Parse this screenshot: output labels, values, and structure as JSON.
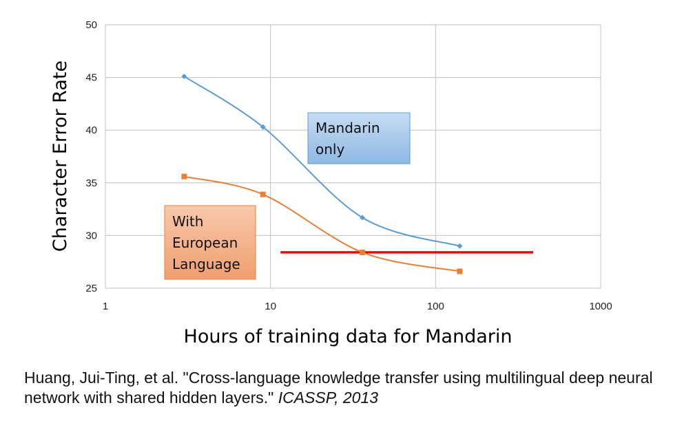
{
  "chart_data": {
    "type": "line",
    "title": "",
    "xlabel": "Hours of training data for Mandarin",
    "ylabel": "Character Error Rate",
    "xscale": "log",
    "xlim": [
      1,
      1000
    ],
    "ylim": [
      25,
      50
    ],
    "x_ticks": [
      "1",
      "10",
      "100",
      "1000"
    ],
    "y_ticks": [
      "25",
      "30",
      "35",
      "40",
      "45",
      "50"
    ],
    "grid": true,
    "series": [
      {
        "color": "#5b9bd5",
        "marker": "diamond",
        "points": [
          {
            "x": 3,
            "y": 45.1
          },
          {
            "x": 9,
            "y": 40.3
          },
          {
            "x": 36,
            "y": 31.7
          },
          {
            "x": 140,
            "y": 29.0
          }
        ]
      },
      {
        "color": "#ed7d31",
        "marker": "square",
        "points": [
          {
            "x": 3,
            "y": 35.6
          },
          {
            "x": 9,
            "y": 33.9
          },
          {
            "x": 36,
            "y": 28.4
          },
          {
            "x": 140,
            "y": 26.6
          }
        ]
      }
    ],
    "reference_line": {
      "y": 28.4,
      "x_start": 11.5,
      "x_end": 390,
      "color": "#ff0000"
    },
    "annotations": [
      {
        "lines": [
          "Mandarin",
          "only"
        ],
        "fill": "#9dc3e6",
        "border": "#5b9bd5"
      },
      {
        "lines": [
          "With",
          "European",
          "Language"
        ],
        "fill": "#f4b183",
        "border": "#ed7d31"
      }
    ]
  },
  "citation": {
    "part1": "Huang, Jui-Ting, et al. \"Cross-language knowledge transfer using multilingual deep neural network with shared hidden layers.\" ",
    "part2": "ICASSP, 2013"
  }
}
